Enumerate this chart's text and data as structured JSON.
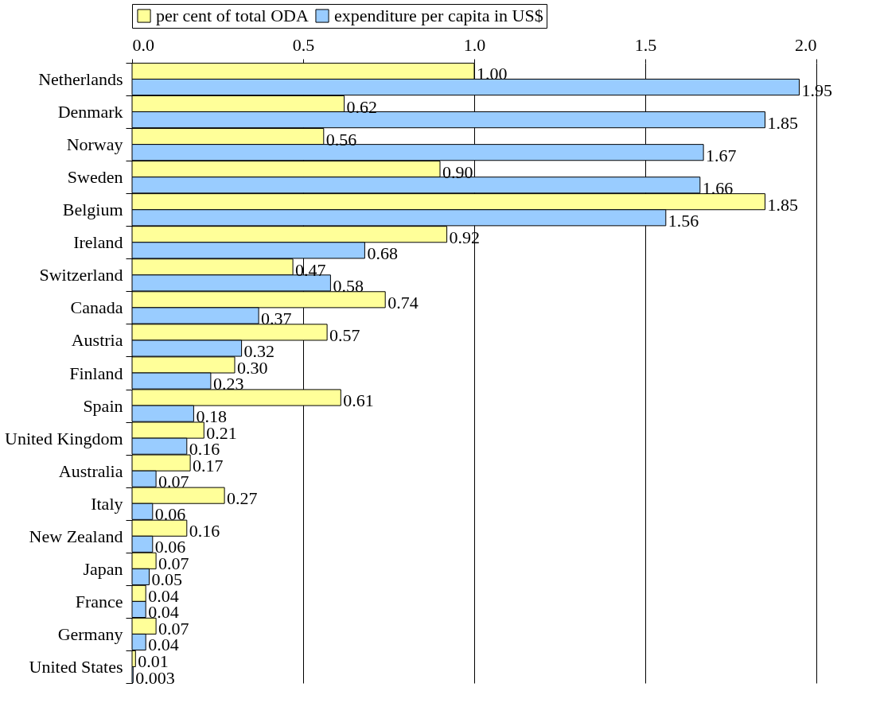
{
  "chart_data": {
    "type": "bar",
    "orientation": "horizontal",
    "categories": [
      "Netherlands",
      "Denmark",
      "Norway",
      "Sweden",
      "Belgium",
      "Ireland",
      "Switzerland",
      "Canada",
      "Austria",
      "Finland",
      "Spain",
      "United Kingdom",
      "Australia",
      "Italy",
      "New Zealand",
      "Japan",
      "France",
      "Germany",
      "United States"
    ],
    "series": [
      {
        "name": "per cent of total ODA",
        "color": "#ffff99",
        "values": [
          1.0,
          0.62,
          0.56,
          0.9,
          1.85,
          0.92,
          0.47,
          0.74,
          0.57,
          0.3,
          0.61,
          0.21,
          0.17,
          0.27,
          0.16,
          0.07,
          0.04,
          0.07,
          0.01
        ],
        "value_labels": [
          "1.00",
          "0.62",
          "0.56",
          "0.90",
          "1.85",
          "0.92",
          "0.47",
          "0.74",
          "0.57",
          "0.30",
          "0.61",
          "0.21",
          "0.17",
          "0.27",
          "0.16",
          "0.07",
          "0.04",
          "0.07",
          "0.01"
        ]
      },
      {
        "name": "expenditure per capita in US$",
        "color": "#99ccff",
        "values": [
          1.95,
          1.85,
          1.67,
          1.66,
          1.56,
          0.68,
          0.58,
          0.37,
          0.32,
          0.23,
          0.18,
          0.16,
          0.07,
          0.06,
          0.06,
          0.05,
          0.04,
          0.04,
          0.003
        ],
        "value_labels": [
          "1.95",
          "1.85",
          "1.67",
          "1.66",
          "1.56",
          "0.68",
          "0.58",
          "0.37",
          "0.32",
          "0.23",
          "0.18",
          "0.16",
          "0.07",
          "0.06",
          "0.06",
          "0.05",
          "0.04",
          "0.04",
          "0.003"
        ]
      }
    ],
    "xlim": [
      0,
      2
    ],
    "xticks": [
      {
        "value": 0,
        "label": "0.0"
      },
      {
        "value": 0.5,
        "label": "0.5"
      },
      {
        "value": 1,
        "label": "1.0"
      },
      {
        "value": 1.5,
        "label": "1.5"
      },
      {
        "value": 2,
        "label": "2.0"
      }
    ],
    "grid": "x",
    "legend": "top"
  }
}
